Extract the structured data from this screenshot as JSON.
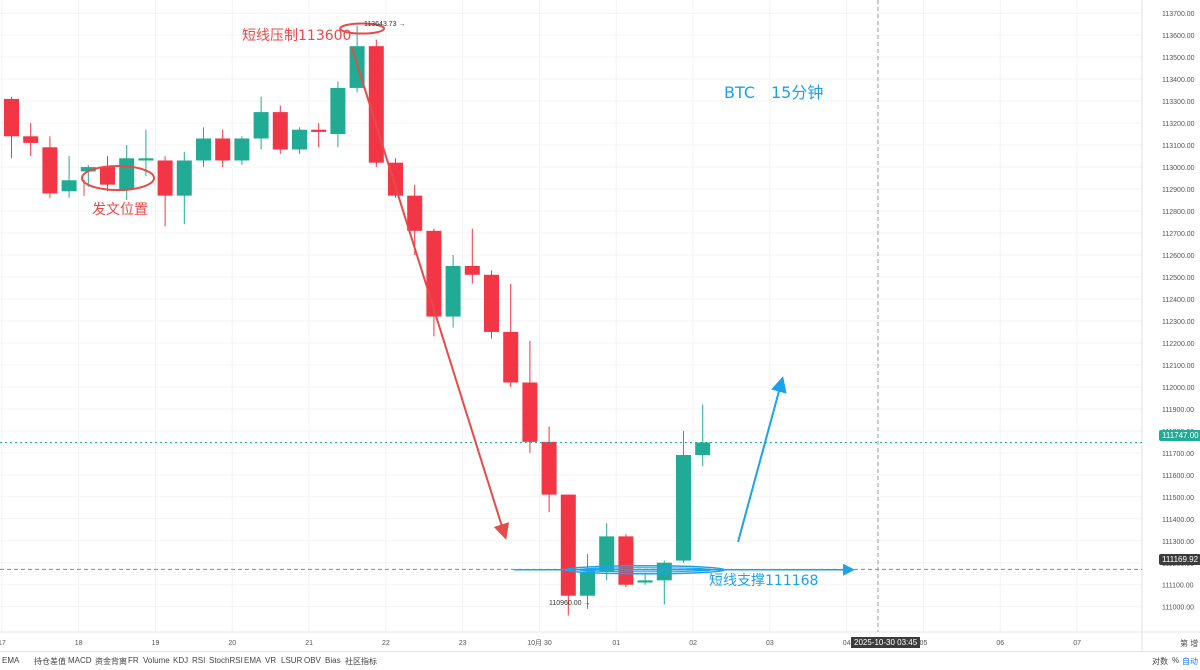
{
  "chart_data": {
    "type": "candlestick",
    "title": "BTC　15分钟",
    "symbol": "BTC",
    "interval": "15分钟",
    "ylim": [
      110885,
      113760
    ],
    "y_ticks": [
      111000,
      111100,
      111200,
      111300,
      111400,
      111500,
      111600,
      111700,
      111800,
      111900,
      112000,
      112100,
      112200,
      112300,
      112400,
      112500,
      112600,
      112700,
      112800,
      112900,
      113000,
      113100,
      113200,
      113300,
      113400,
      113500,
      113600,
      113700
    ],
    "x_ticks": [
      {
        "label": "17",
        "i": -0.5
      },
      {
        "label": "18",
        "i": 3.5
      },
      {
        "label": "19",
        "i": 7.5
      },
      {
        "label": "20",
        "i": 11.5
      },
      {
        "label": "21",
        "i": 15.5
      },
      {
        "label": "22",
        "i": 19.5
      },
      {
        "label": "23",
        "i": 23.5
      },
      {
        "label": "10月 30",
        "i": 27.5
      },
      {
        "label": "01",
        "i": 31.5
      },
      {
        "label": "02",
        "i": 35.5
      },
      {
        "label": "03",
        "i": 39.5
      },
      {
        "label": "04",
        "i": 43.5
      },
      {
        "label": "05",
        "i": 47.5
      },
      {
        "label": "06",
        "i": 51.5
      },
      {
        "label": "07",
        "i": 55.5
      }
    ],
    "candles": [
      {
        "o": 113310,
        "h": 113320,
        "l": 113040,
        "c": 113140
      },
      {
        "o": 113140,
        "h": 113200,
        "l": 113050,
        "c": 113110
      },
      {
        "o": 113090,
        "h": 113140,
        "l": 112860,
        "c": 112880
      },
      {
        "o": 112890,
        "h": 113050,
        "l": 112860,
        "c": 112940
      },
      {
        "o": 112980,
        "h": 113010,
        "l": 112910,
        "c": 113000
      },
      {
        "o": 113000,
        "h": 113050,
        "l": 112890,
        "c": 112920
      },
      {
        "o": 112900,
        "h": 113100,
        "l": 112850,
        "c": 113040
      },
      {
        "o": 113030,
        "h": 113170,
        "l": 112960,
        "c": 113040
      },
      {
        "o": 113030,
        "h": 113050,
        "l": 112730,
        "c": 112870
      },
      {
        "o": 112870,
        "h": 113070,
        "l": 112740,
        "c": 113030
      },
      {
        "o": 113030,
        "h": 113180,
        "l": 113000,
        "c": 113130
      },
      {
        "o": 113130,
        "h": 113170,
        "l": 113000,
        "c": 113030
      },
      {
        "o": 113030,
        "h": 113140,
        "l": 113010,
        "c": 113130
      },
      {
        "o": 113130,
        "h": 113320,
        "l": 113080,
        "c": 113250
      },
      {
        "o": 113250,
        "h": 113280,
        "l": 113060,
        "c": 113080
      },
      {
        "o": 113080,
        "h": 113180,
        "l": 113060,
        "c": 113170
      },
      {
        "o": 113170,
        "h": 113200,
        "l": 113090,
        "c": 113160
      },
      {
        "o": 113150,
        "h": 113390,
        "l": 113090,
        "c": 113360
      },
      {
        "o": 113360,
        "h": 113643.73,
        "l": 113340,
        "c": 113550
      },
      {
        "o": 113550,
        "h": 113580,
        "l": 113000,
        "c": 113020
      },
      {
        "o": 113020,
        "h": 113040,
        "l": 112860,
        "c": 112870
      },
      {
        "o": 112870,
        "h": 112920,
        "l": 112600,
        "c": 112710
      },
      {
        "o": 112710,
        "h": 112720,
        "l": 112230,
        "c": 112320
      },
      {
        "o": 112320,
        "h": 112600,
        "l": 112270,
        "c": 112550
      },
      {
        "o": 112550,
        "h": 112720,
        "l": 112470,
        "c": 112510
      },
      {
        "o": 112510,
        "h": 112530,
        "l": 112220,
        "c": 112250
      },
      {
        "o": 112250,
        "h": 112470,
        "l": 112000,
        "c": 112020
      },
      {
        "o": 112020,
        "h": 112210,
        "l": 111700,
        "c": 111750
      },
      {
        "o": 111750,
        "h": 111820,
        "l": 111430,
        "c": 111510
      },
      {
        "o": 111510,
        "h": 111510,
        "l": 110960.0,
        "c": 111050
      },
      {
        "o": 111050,
        "h": 111240,
        "l": 110990,
        "c": 111160
      },
      {
        "o": 111160,
        "h": 111380,
        "l": 111120,
        "c": 111320
      },
      {
        "o": 111320,
        "h": 111330,
        "l": 111090,
        "c": 111100
      },
      {
        "o": 111110,
        "h": 111150,
        "l": 111100,
        "c": 111120
      },
      {
        "o": 111120,
        "h": 111210,
        "l": 111010,
        "c": 111200
      },
      {
        "o": 111210,
        "h": 111800,
        "l": 111200,
        "c": 111690
      },
      {
        "o": 111690,
        "h": 111920,
        "l": 111640,
        "c": 111747
      }
    ],
    "high_label": "113643.73",
    "low_label": "110960.00",
    "current_price": 111747.0,
    "current_price_label": "111747.00",
    "cursor_price": 111169.92,
    "cursor_price_label": "111169.92",
    "cursor_time_label": "2025-10-30 03:45",
    "annotations": {
      "resistance": "短线压制113600",
      "entry": "发文位置",
      "support": "短线支撑111168"
    },
    "colors": {
      "up": "#22ab94",
      "down": "#f23645",
      "annotation_red": "#e84a4a",
      "annotation_blue": "#1aa3e8",
      "axis_text": "#555555",
      "grid": "#f3f3f3"
    }
  },
  "indicators": {
    "left_label": "EMA",
    "items": [
      "持仓差值",
      "MACD",
      "资金背离",
      "FR",
      "Volume",
      "KDJ",
      "RSI",
      "StochRSI",
      "EMA",
      "VR",
      "LSUR",
      "OBV",
      "Bias",
      "社区指标"
    ],
    "community_icon": "community-indicator-icon"
  },
  "bottom_right": {
    "log": "对数",
    "pct": "%",
    "auto": "自动"
  },
  "corner": {
    "label": "第 增"
  }
}
